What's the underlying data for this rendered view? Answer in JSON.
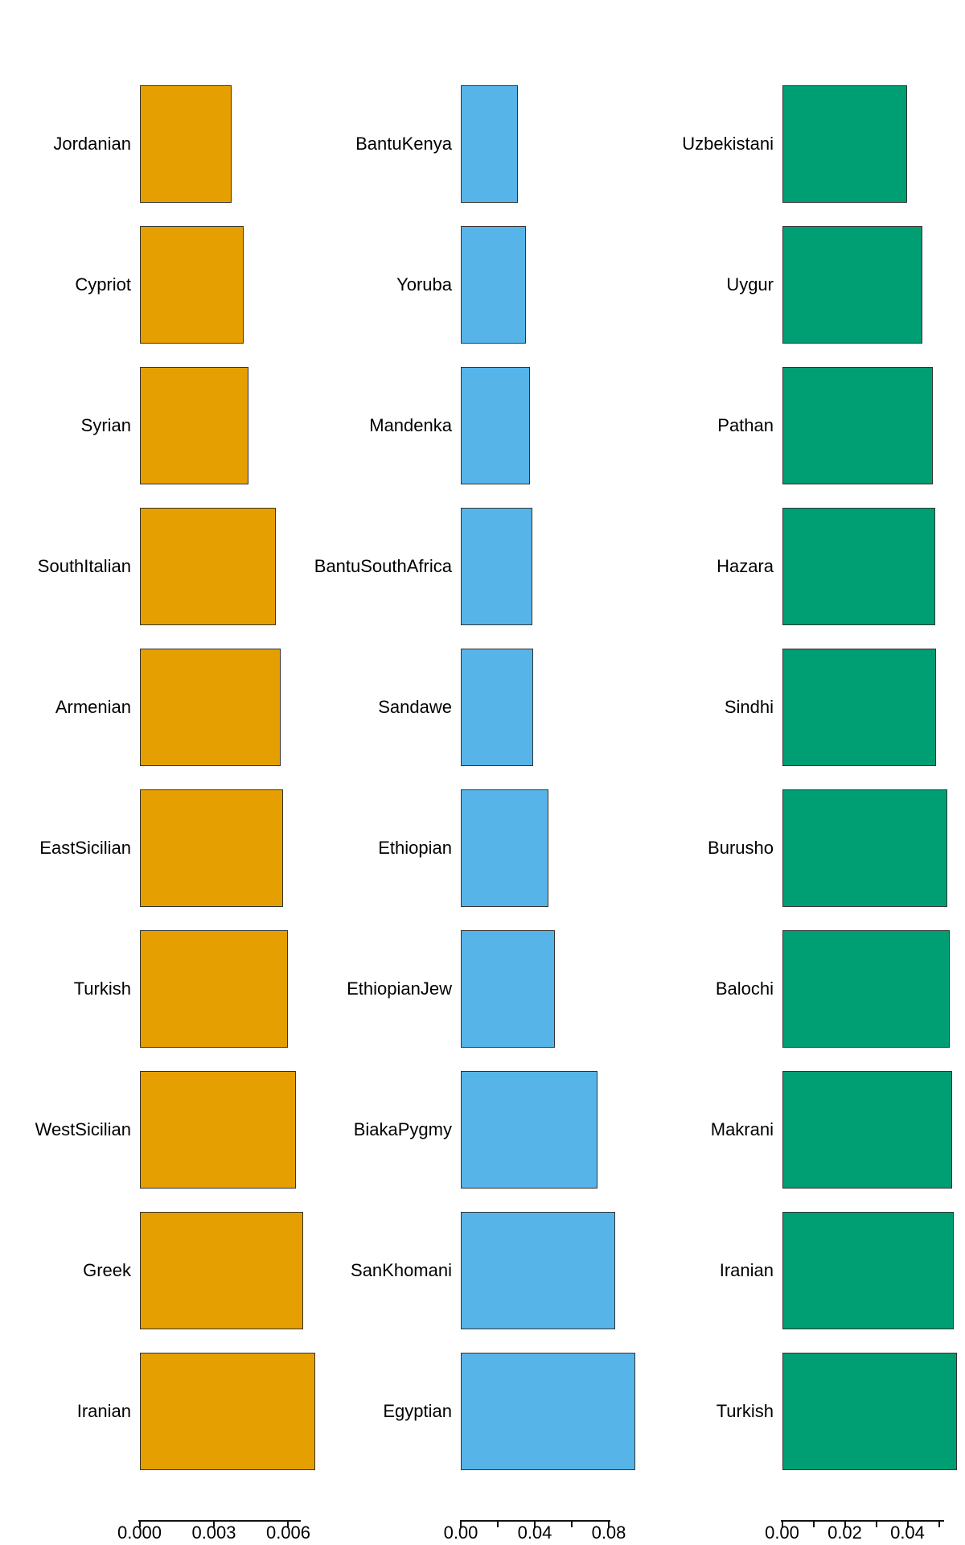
{
  "chart_data": [
    {
      "type": "bar",
      "orientation": "horizontal",
      "panel": "left",
      "bar_color": "#E69F00",
      "border_color": "#333333",
      "categories": [
        "Jordanian",
        "Cypriot",
        "Syrian",
        "SouthItalian",
        "Armenian",
        "EastSicilian",
        "Turkish",
        "WestSicilian",
        "Greek",
        "Iranian"
      ],
      "values": [
        0.0037,
        0.0042,
        0.0044,
        0.0055,
        0.0057,
        0.0058,
        0.006,
        0.0063,
        0.0066,
        0.0071
      ],
      "xlim": [
        0,
        0.0065
      ],
      "x_ticks": {
        "values": [
          0,
          0.003,
          0.006
        ],
        "labels": [
          "0.000",
          "0.003",
          "0.006"
        ]
      },
      "x_minor_ticks": [],
      "grid": "off",
      "legend": "none"
    },
    {
      "type": "bar",
      "orientation": "horizontal",
      "panel": "middle",
      "bar_color": "#56B4E9",
      "border_color": "#333333",
      "categories": [
        "BantuKenya",
        "Yoruba",
        "Mandenka",
        "BantuSouthAfrica",
        "Sandawe",
        "Ethiopian",
        "EthiopianJew",
        "BiakaPygmy",
        "SanKhomani",
        "Egyptian"
      ],
      "values": [
        0.0309,
        0.0354,
        0.0372,
        0.0385,
        0.0393,
        0.0476,
        0.0507,
        0.0737,
        0.0833,
        0.0943
      ],
      "xlim": [
        0,
        0.081
      ],
      "x_ticks": {
        "values": [
          0,
          0.04,
          0.08
        ],
        "labels": [
          "0.00",
          "0.04",
          "0.08"
        ]
      },
      "x_minor_ticks": [
        0.02,
        0.06
      ],
      "grid": "off",
      "legend": "none"
    },
    {
      "type": "bar",
      "orientation": "horizontal",
      "panel": "right",
      "bar_color": "#009E73",
      "border_color": "#333333",
      "categories": [
        "Uzbekistani",
        "Uygur",
        "Pathan",
        "Hazara",
        "Sindhi",
        "Burusho",
        "Balochi",
        "Makrani",
        "Iranian",
        "Turkish"
      ],
      "values": [
        0.0399,
        0.0447,
        0.0481,
        0.0488,
        0.0491,
        0.0527,
        0.0535,
        0.0542,
        0.0547,
        0.0558
      ],
      "xlim": [
        0,
        0.0515
      ],
      "x_ticks": {
        "values": [
          0,
          0.02,
          0.04
        ],
        "labels": [
          "0.00",
          "0.02",
          "0.04"
        ]
      },
      "x_minor_ticks": [
        0.01,
        0.03,
        0.05
      ],
      "grid": "off",
      "legend": "none"
    }
  ]
}
